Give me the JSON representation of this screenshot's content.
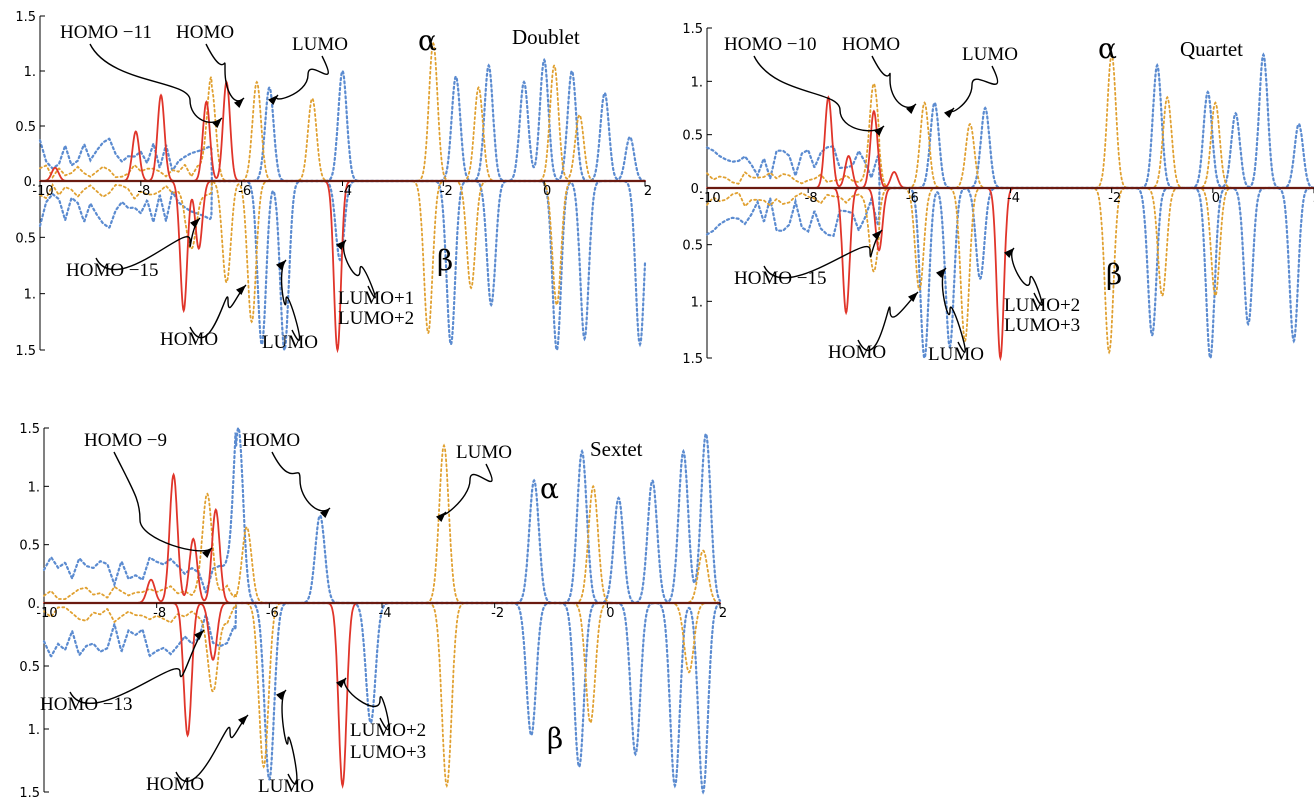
{
  "colors": {
    "total": "#5b8bd0",
    "partial": "#e0a030",
    "metal": "#e0352a",
    "axis": "#6a1a10"
  },
  "chart_data": [
    {
      "type": "line",
      "panel": "Doublet",
      "xlim": [
        -10,
        2
      ],
      "ylim": [
        -1.5,
        1.5
      ],
      "x_ticks": [
        "-10",
        "-8",
        "-6",
        "-4",
        "-2",
        "0",
        "2"
      ],
      "y_ticks": [
        "1.5",
        "1.",
        "0.5",
        "0.",
        "0.5",
        "1.",
        "1.5"
      ],
      "spin_up_label": "α",
      "spin_down_label": "β",
      "seed": 11,
      "series": [
        {
          "role": "total",
          "peaks": [
            [
              -5.45,
              0.85
            ],
            [
              -4.0,
              1.0
            ],
            [
              -1.75,
              0.95
            ],
            [
              -1.1,
              1.05
            ],
            [
              -0.4,
              0.9
            ],
            [
              0.0,
              1.1
            ],
            [
              0.55,
              1.0
            ],
            [
              1.2,
              0.8
            ],
            [
              1.7,
              0.4
            ]
          ],
          "dpeaks": [
            [
              -5.6,
              1.45
            ],
            [
              -5.15,
              1.5
            ],
            [
              -4.05,
              0.7
            ],
            [
              -1.85,
              1.45
            ],
            [
              -1.05,
              1.1
            ],
            [
              0.25,
              1.5
            ],
            [
              0.8,
              1.4
            ],
            [
              1.9,
              1.45
            ]
          ]
        },
        {
          "role": "partial",
          "peaks": [
            [
              -6.6,
              0.85
            ],
            [
              -5.7,
              0.9
            ],
            [
              -4.6,
              0.75
            ],
            [
              -2.2,
              1.25
            ],
            [
              -1.3,
              0.85
            ],
            [
              0.2,
              1.05
            ],
            [
              0.7,
              0.6
            ]
          ],
          "dpeaks": [
            [
              -7.0,
              0.55
            ],
            [
              -6.3,
              0.9
            ],
            [
              -5.8,
              1.25
            ],
            [
              -2.3,
              1.35
            ],
            [
              -1.45,
              0.95
            ],
            [
              0.25,
              1.1
            ]
          ]
        },
        {
          "role": "metal",
          "peaks": [
            [
              -9.7,
              0.12
            ],
            [
              -8.1,
              0.45
            ],
            [
              -7.6,
              0.78
            ],
            [
              -6.7,
              0.72
            ],
            [
              -6.3,
              0.9
            ]
          ],
          "dpeaks": [
            [
              -7.15,
              1.15
            ],
            [
              -6.85,
              0.6
            ],
            [
              -4.1,
              1.5
            ]
          ]
        }
      ],
      "annotations": [
        {
          "text": "HOMO −11",
          "target": "up"
        },
        {
          "text": "HOMO",
          "target": "up"
        },
        {
          "text": "LUMO",
          "target": "up"
        },
        {
          "text": "HOMO −15",
          "target": "down"
        },
        {
          "text": "HOMO",
          "target": "down"
        },
        {
          "text": "LUMO",
          "target": "down"
        },
        {
          "text": "LUMO+1",
          "target": "down"
        },
        {
          "text": "LUMO+2",
          "target": "down"
        }
      ]
    },
    {
      "type": "line",
      "panel": "Quartet",
      "xlim": [
        -10,
        2
      ],
      "ylim": [
        -1.5,
        1.5
      ],
      "x_ticks": [
        "-10",
        "-8",
        "-6",
        "-4",
        "-2",
        "0",
        "2"
      ],
      "y_ticks": [
        "1.5",
        "1.",
        "0.5",
        "0.",
        "0.5",
        "1.",
        "1.5"
      ],
      "spin_up_label": "α",
      "spin_down_label": "β",
      "seed": 23,
      "series": [
        {
          "role": "total",
          "peaks": [
            [
              -5.5,
              0.8
            ],
            [
              -4.5,
              0.75
            ],
            [
              -1.1,
              1.15
            ],
            [
              -0.1,
              0.9
            ],
            [
              0.45,
              0.7
            ],
            [
              1.0,
              1.25
            ],
            [
              1.7,
              0.6
            ]
          ],
          "dpeaks": [
            [
              -5.7,
              1.5
            ],
            [
              -5.2,
              1.4
            ],
            [
              -4.6,
              0.8
            ],
            [
              -1.2,
              1.3
            ],
            [
              -0.05,
              1.5
            ],
            [
              0.7,
              1.2
            ],
            [
              1.6,
              1.35
            ]
          ]
        },
        {
          "role": "partial",
          "peaks": [
            [
              -6.7,
              0.85
            ],
            [
              -5.7,
              0.8
            ],
            [
              -4.8,
              0.6
            ],
            [
              -2.0,
              1.25
            ],
            [
              -0.9,
              0.85
            ],
            [
              0.05,
              0.8
            ]
          ],
          "dpeaks": [
            [
              -6.7,
              0.6
            ],
            [
              -5.8,
              0.9
            ],
            [
              -4.9,
              1.35
            ],
            [
              -2.05,
              1.45
            ],
            [
              -1.0,
              0.95
            ],
            [
              0.05,
              0.95
            ]
          ]
        },
        {
          "role": "metal",
          "peaks": [
            [
              -7.6,
              0.85
            ],
            [
              -7.2,
              0.3
            ],
            [
              -6.7,
              0.72
            ],
            [
              -6.3,
              0.15
            ]
          ],
          "dpeaks": [
            [
              -7.25,
              1.1
            ],
            [
              -6.6,
              0.55
            ],
            [
              -4.2,
              1.5
            ]
          ]
        }
      ],
      "annotations": [
        {
          "text": "HOMO −10",
          "target": "up"
        },
        {
          "text": "HOMO",
          "target": "up"
        },
        {
          "text": "LUMO",
          "target": "up"
        },
        {
          "text": "HOMO −15",
          "target": "down"
        },
        {
          "text": "HOMO",
          "target": "down"
        },
        {
          "text": "LUMO",
          "target": "down"
        },
        {
          "text": "LUMO+2",
          "target": "down"
        },
        {
          "text": "LUMO+3",
          "target": "down"
        }
      ]
    },
    {
      "type": "line",
      "panel": "Sextet",
      "xlim": [
        -10,
        2
      ],
      "ylim": [
        -1.5,
        1.5
      ],
      "x_ticks": [
        "-10",
        "-8",
        "-6",
        "-4",
        "-2",
        "0",
        "2"
      ],
      "y_ticks": [
        "1.5",
        "1.",
        "0.5",
        "0.",
        "0.5",
        "1.",
        "1.5"
      ],
      "spin_up_label": "α",
      "spin_down_label": "β",
      "seed": 37,
      "series": [
        {
          "role": "total",
          "peaks": [
            [
              -6.55,
              1.5
            ],
            [
              -5.1,
              0.75
            ],
            [
              -1.3,
              1.05
            ],
            [
              -0.45,
              1.3
            ],
            [
              0.2,
              0.9
            ],
            [
              0.8,
              1.05
            ],
            [
              1.35,
              1.3
            ],
            [
              1.75,
              1.45
            ]
          ],
          "dpeaks": [
            [
              -6.0,
              1.4
            ],
            [
              -4.2,
              0.95
            ],
            [
              -1.35,
              1.05
            ],
            [
              -0.5,
              1.3
            ],
            [
              0.5,
              1.2
            ],
            [
              1.2,
              1.45
            ],
            [
              1.7,
              1.5
            ]
          ]
        },
        {
          "role": "partial",
          "peaks": [
            [
              -7.1,
              0.85
            ],
            [
              -6.4,
              0.65
            ],
            [
              -2.9,
              1.35
            ],
            [
              -0.25,
              1.0
            ],
            [
              1.7,
              0.45
            ]
          ],
          "dpeaks": [
            [
              -7.0,
              0.65
            ],
            [
              -6.1,
              1.3
            ],
            [
              -2.85,
              1.45
            ],
            [
              -0.3,
              0.95
            ],
            [
              1.45,
              0.55
            ]
          ]
        },
        {
          "role": "metal",
          "peaks": [
            [
              -8.1,
              0.2
            ],
            [
              -7.7,
              1.1
            ],
            [
              -7.35,
              0.55
            ],
            [
              -6.95,
              0.8
            ]
          ],
          "dpeaks": [
            [
              -7.45,
              1.05
            ],
            [
              -7.0,
              0.45
            ],
            [
              -4.7,
              1.45
            ]
          ]
        }
      ],
      "annotations": [
        {
          "text": "HOMO −9",
          "target": "up"
        },
        {
          "text": "HOMO",
          "target": "up"
        },
        {
          "text": "LUMO",
          "target": "up"
        },
        {
          "text": "HOMO −13",
          "target": "down"
        },
        {
          "text": "HOMO",
          "target": "down"
        },
        {
          "text": "LUMO",
          "target": "down"
        },
        {
          "text": "LUMO+2",
          "target": "down"
        },
        {
          "text": "LUMO+3",
          "target": "down"
        }
      ]
    }
  ]
}
